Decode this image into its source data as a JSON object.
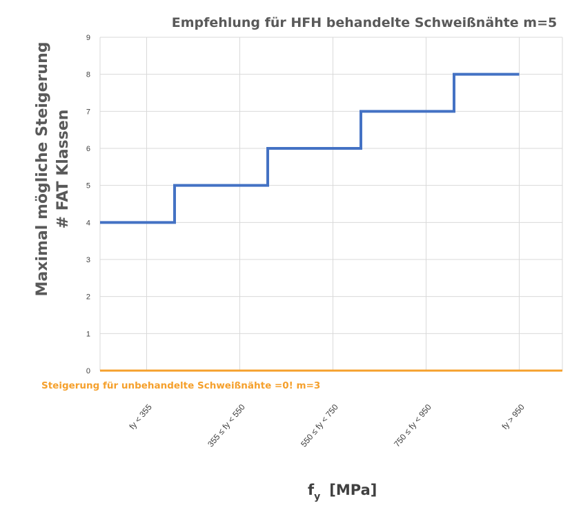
{
  "chart_data": {
    "type": "line",
    "title": "Empfehlung für HFH behandelte Schweißnähte m=5",
    "ylabel_line1": "Maximal mögliche Steigerung",
    "ylabel_line2": "# FAT Klassen",
    "xlabel_main": "f",
    "xlabel_sub": "y",
    "xlabel_unit": "[MPa]",
    "categories": [
      "fy < 355",
      "355 ≤ fy < 550",
      "550 ≤ fy < 750",
      "750 ≤ fy < 950",
      "fy > 950"
    ],
    "ylim": [
      0,
      9
    ],
    "yticks": [
      "0",
      "1",
      "2",
      "3",
      "4",
      "5",
      "6",
      "7",
      "8",
      "9"
    ],
    "grid": true,
    "series": [
      {
        "style": "step",
        "color": "#4472C4",
        "steps": [
          {
            "from": 0,
            "to": 0.8,
            "value": 4
          },
          {
            "from": 0.8,
            "to": 1.8,
            "value": 5
          },
          {
            "from": 1.8,
            "to": 2.8,
            "value": 6
          },
          {
            "from": 2.8,
            "to": 3.8,
            "value": 7
          },
          {
            "from": 3.8,
            "to": 4.5,
            "value": 8
          }
        ]
      },
      {
        "style": "flat",
        "color": "#F5A02C",
        "value": 0
      }
    ],
    "annotation": "Steigerung für unbehandelte Schweißnähte =0! m=3"
  }
}
